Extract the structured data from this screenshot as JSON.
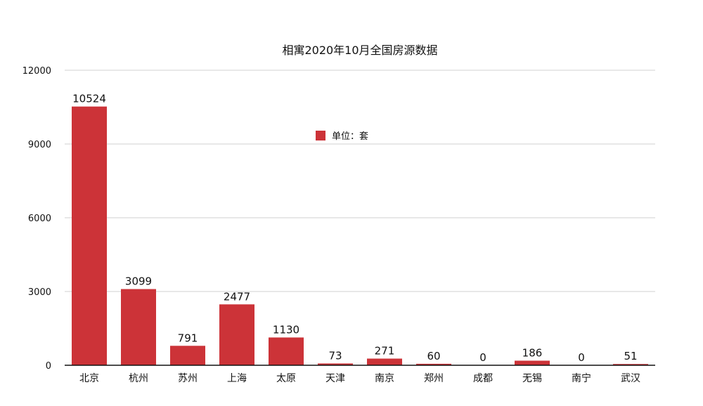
{
  "chart_data": {
    "type": "bar",
    "title": "相寓2020年10月全国房源数据",
    "categories": [
      "北京",
      "杭州",
      "苏州",
      "上海",
      "太原",
      "天津",
      "南京",
      "郑州",
      "成都",
      "无锡",
      "南宁",
      "武汉"
    ],
    "series": [
      {
        "name": "单位：套",
        "values": [
          10524,
          3099,
          791,
          2477,
          1130,
          73,
          271,
          60,
          0,
          186,
          0,
          51
        ]
      }
    ],
    "data_labels": [
      "10524",
      "3099",
      "791",
      "2477",
      "1130",
      "73",
      "271",
      "60",
      "0",
      "186",
      "0",
      "51"
    ],
    "yticks": [
      "0",
      "3000",
      "6000",
      "9000",
      "12000"
    ],
    "ylim": [
      0,
      12000
    ],
    "grid": true,
    "legend_position": "top-center",
    "bar_color": "#cc3338"
  }
}
